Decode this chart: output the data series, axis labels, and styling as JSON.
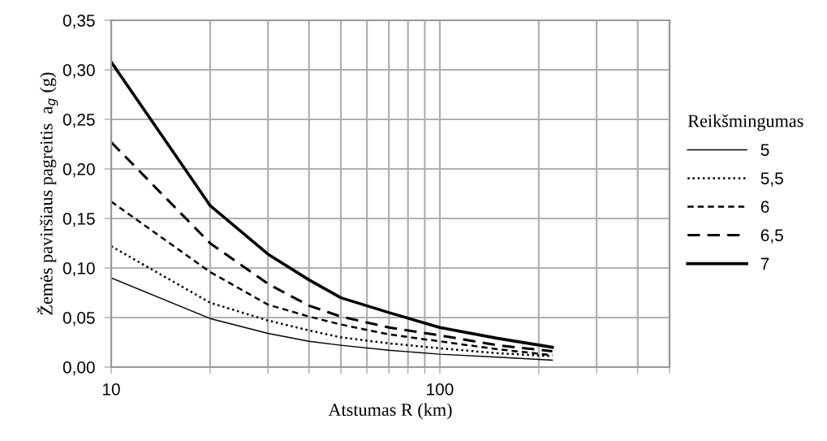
{
  "chart_data": {
    "type": "line",
    "xlabel": "Atstumas R (km)",
    "ylabel": "Žemės paviršiaus pagreitis  a$_{g}$ (g)",
    "legend_title": "Reikšmingumas",
    "legend": "right",
    "grid": true,
    "log": "x",
    "x": [
      10,
      20,
      30,
      40,
      50,
      70,
      100,
      150,
      220
    ],
    "xlim": [
      10,
      500
    ],
    "xticks": [
      10,
      {
        "value": 20,
        "label": null
      },
      {
        "value": 30,
        "label": null
      },
      {
        "value": 40,
        "label": null
      },
      {
        "value": 50,
        "label": null
      },
      {
        "value": 60,
        "label": null
      },
      {
        "value": 70,
        "label": null
      },
      {
        "value": 80,
        "label": null
      },
      {
        "value": 90,
        "label": null
      },
      100,
      {
        "value": 200,
        "label": null
      },
      {
        "value": 300,
        "label": null
      },
      {
        "value": 400,
        "label": null
      },
      {
        "value": 500,
        "label": null
      }
    ],
    "ylim": [
      0,
      0.35
    ],
    "yticks": [
      {
        "value": 0,
        "label": "0,00"
      },
      {
        "value": 0.05,
        "label": "0,05"
      },
      {
        "value": 0.1,
        "label": "0,10"
      },
      {
        "value": 0.15,
        "label": "0,15"
      },
      {
        "value": 0.2,
        "label": "0,20"
      },
      {
        "value": 0.25,
        "label": "0,25"
      },
      {
        "value": 0.3,
        "label": "0,30"
      },
      {
        "value": 0.35,
        "label": "0,35"
      }
    ],
    "series": [
      {
        "name": "5",
        "color": "#000000",
        "line_style": "solid",
        "values": [
          0.09,
          0.049,
          0.034,
          0.026,
          0.022,
          0.017,
          0.013,
          0.01,
          0.007
        ]
      },
      {
        "name": "5,5",
        "color": "#000000",
        "line_style": "dotted",
        "values": [
          0.122,
          0.065,
          0.047,
          0.037,
          0.03,
          0.024,
          0.019,
          0.014,
          0.011
        ]
      },
      {
        "name": "6",
        "color": "#000000",
        "line_style": "dashed",
        "values": [
          0.167,
          0.096,
          0.063,
          0.051,
          0.043,
          0.033,
          0.026,
          0.018,
          0.012
        ]
      },
      {
        "name": "6,5",
        "color": "#000000",
        "line_style": "longdash",
        "values": [
          0.227,
          0.125,
          0.084,
          0.062,
          0.051,
          0.04,
          0.032,
          0.022,
          0.016
        ]
      },
      {
        "name": "7",
        "color": "#000000",
        "line_style": "solid",
        "values": [
          0.308,
          0.163,
          0.114,
          0.088,
          0.07,
          0.055,
          0.04,
          0.029,
          0.02
        ]
      }
    ]
  }
}
